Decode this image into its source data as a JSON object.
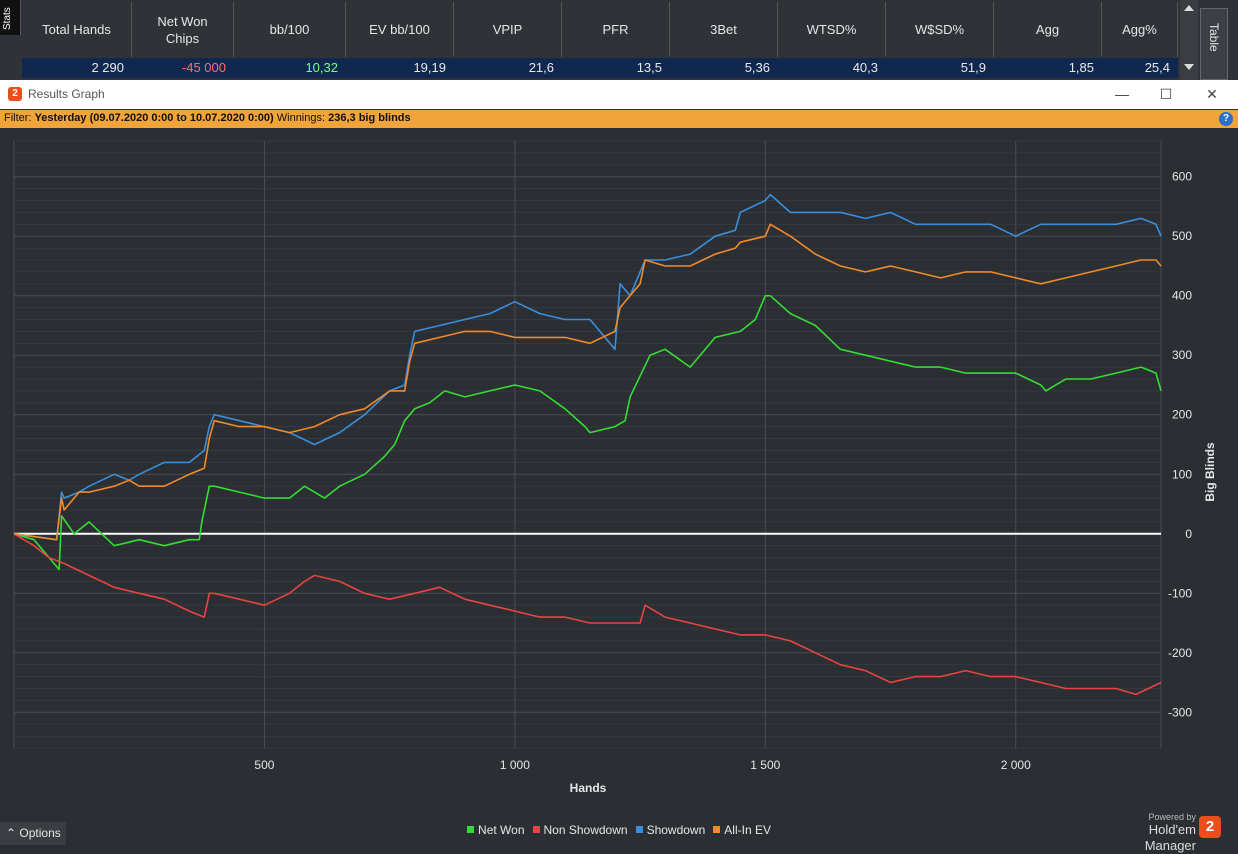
{
  "stats_panel": {
    "tab_label": "Stats",
    "right_tab_label": "Table",
    "columns": [
      {
        "header": "Total Hands",
        "value": "2 290",
        "value_color": "#e8e8e8"
      },
      {
        "header": "Net Won Chips",
        "value": "-45 000",
        "value_color": "#ff6f6f"
      },
      {
        "header": "bb/100",
        "value": "10,32",
        "value_color": "#7dff7d"
      },
      {
        "header": "EV bb/100",
        "value": "19,19",
        "value_color": "#e8e8e8"
      },
      {
        "header": "VPIP",
        "value": "21,6",
        "value_color": "#e8e8e8"
      },
      {
        "header": "PFR",
        "value": "13,5",
        "value_color": "#e8e8e8"
      },
      {
        "header": "3Bet",
        "value": "5,36",
        "value_color": "#e8e8e8"
      },
      {
        "header": "WTSD%",
        "value": "40,3",
        "value_color": "#e8e8e8"
      },
      {
        "header": "W$SD%",
        "value": "51,9",
        "value_color": "#e8e8e8"
      },
      {
        "header": "Agg",
        "value": "1,85",
        "value_color": "#e8e8e8"
      },
      {
        "header": "Agg%",
        "value": "25,4",
        "value_color": "#e8e8e8"
      }
    ]
  },
  "window": {
    "title": "Results Graph",
    "app_icon_text": "2",
    "minimize": "—",
    "maximize": "☐",
    "close": "✕"
  },
  "filter": {
    "label": "Filter:",
    "value": "Yesterday (09.07.2020 0:00 to 10.07.2020 0:00)",
    "winnings_label": "Winnings:",
    "winnings_value": "236,3 big blinds",
    "help": "?"
  },
  "chart_data": {
    "type": "line",
    "xlabel": "Hands",
    "ylabel": "Big Blinds",
    "xlim": [
      0,
      2290
    ],
    "ylim": [
      -360,
      660
    ],
    "x_ticks": [
      {
        "value": 500,
        "label": "500"
      },
      {
        "value": 1000,
        "label": "1 000"
      },
      {
        "value": 1500,
        "label": "1 500"
      },
      {
        "value": 2000,
        "label": "2 000"
      }
    ],
    "y_ticks": [
      {
        "value": 600,
        "label": "600"
      },
      {
        "value": 500,
        "label": "500"
      },
      {
        "value": 400,
        "label": "400"
      },
      {
        "value": 300,
        "label": "300"
      },
      {
        "value": 200,
        "label": "200"
      },
      {
        "value": 100,
        "label": "100"
      },
      {
        "value": 0,
        "label": "0"
      },
      {
        "value": -100,
        "label": "-100"
      },
      {
        "value": -200,
        "label": "-200"
      },
      {
        "value": -300,
        "label": "-300"
      }
    ],
    "grid": true,
    "legend_position": "bottom",
    "series": [
      {
        "name": "Net Won",
        "color": "#33dd33",
        "x": [
          0,
          40,
          70,
          90,
          95,
          120,
          150,
          200,
          250,
          300,
          350,
          370,
          375,
          390,
          400,
          450,
          500,
          550,
          580,
          620,
          650,
          700,
          740,
          760,
          780,
          800,
          830,
          860,
          900,
          950,
          1000,
          1050,
          1100,
          1140,
          1150,
          1200,
          1220,
          1230,
          1270,
          1300,
          1350,
          1400,
          1450,
          1480,
          1500,
          1510,
          1550,
          1600,
          1650,
          1700,
          1750,
          1800,
          1850,
          1900,
          1950,
          2000,
          2050,
          2060,
          2100,
          2150,
          2200,
          2250,
          2280,
          2290
        ],
        "y": [
          0,
          -10,
          -40,
          -60,
          30,
          0,
          20,
          -20,
          -10,
          -20,
          -10,
          -10,
          20,
          80,
          80,
          70,
          60,
          60,
          80,
          60,
          80,
          100,
          130,
          150,
          190,
          210,
          220,
          240,
          230,
          240,
          250,
          240,
          210,
          180,
          170,
          180,
          190,
          230,
          300,
          310,
          280,
          330,
          340,
          360,
          400,
          400,
          370,
          350,
          310,
          300,
          290,
          280,
          280,
          270,
          270,
          270,
          250,
          240,
          260,
          260,
          270,
          280,
          270,
          240
        ]
      },
      {
        "name": "Non Showdown",
        "color": "#e84444",
        "x": [
          0,
          40,
          70,
          100,
          150,
          200,
          250,
          300,
          350,
          380,
          390,
          400,
          450,
          500,
          550,
          580,
          600,
          650,
          700,
          750,
          800,
          850,
          900,
          950,
          1000,
          1050,
          1100,
          1150,
          1200,
          1250,
          1260,
          1300,
          1350,
          1400,
          1450,
          1500,
          1550,
          1600,
          1650,
          1700,
          1750,
          1800,
          1850,
          1900,
          1950,
          2000,
          2050,
          2100,
          2150,
          2200,
          2240,
          2290
        ],
        "y": [
          0,
          -20,
          -40,
          -50,
          -70,
          -90,
          -100,
          -110,
          -130,
          -140,
          -100,
          -100,
          -110,
          -120,
          -100,
          -80,
          -70,
          -80,
          -100,
          -110,
          -100,
          -90,
          -110,
          -120,
          -130,
          -140,
          -140,
          -150,
          -150,
          -150,
          -120,
          -140,
          -150,
          -160,
          -170,
          -170,
          -180,
          -200,
          -220,
          -230,
          -250,
          -240,
          -240,
          -230,
          -240,
          -240,
          -250,
          -260,
          -260,
          -260,
          -270,
          -250
        ]
      },
      {
        "name": "Showdown",
        "color": "#3a8fdd",
        "x": [
          0,
          85,
          95,
          100,
          130,
          150,
          200,
          230,
          250,
          300,
          350,
          380,
          390,
          400,
          450,
          500,
          550,
          600,
          650,
          700,
          750,
          780,
          790,
          800,
          850,
          900,
          950,
          1000,
          1050,
          1100,
          1150,
          1200,
          1210,
          1230,
          1250,
          1260,
          1300,
          1350,
          1400,
          1440,
          1450,
          1500,
          1510,
          1550,
          1600,
          1650,
          1700,
          1750,
          1800,
          1850,
          1900,
          1950,
          2000,
          2050,
          2100,
          2150,
          2200,
          2250,
          2280,
          2290
        ],
        "y": [
          0,
          -10,
          70,
          60,
          70,
          80,
          100,
          90,
          100,
          120,
          120,
          140,
          180,
          200,
          190,
          180,
          170,
          150,
          170,
          200,
          240,
          250,
          300,
          340,
          350,
          360,
          370,
          390,
          370,
          360,
          360,
          310,
          420,
          400,
          440,
          460,
          460,
          470,
          500,
          510,
          540,
          560,
          570,
          540,
          540,
          540,
          530,
          540,
          520,
          520,
          520,
          520,
          500,
          520,
          520,
          520,
          520,
          530,
          520,
          500
        ]
      },
      {
        "name": "All-In EV",
        "color": "#f08a2a",
        "x": [
          0,
          85,
          95,
          100,
          130,
          150,
          200,
          230,
          250,
          300,
          350,
          380,
          390,
          400,
          450,
          500,
          550,
          600,
          650,
          700,
          750,
          780,
          790,
          800,
          850,
          900,
          950,
          1000,
          1050,
          1100,
          1150,
          1200,
          1210,
          1230,
          1250,
          1260,
          1300,
          1350,
          1400,
          1440,
          1450,
          1500,
          1510,
          1550,
          1600,
          1650,
          1700,
          1750,
          1800,
          1850,
          1900,
          1950,
          2000,
          2050,
          2100,
          2150,
          2200,
          2250,
          2280,
          2290
        ],
        "y": [
          0,
          -10,
          60,
          40,
          70,
          70,
          80,
          90,
          80,
          80,
          100,
          110,
          160,
          190,
          180,
          180,
          170,
          180,
          200,
          210,
          240,
          240,
          290,
          320,
          330,
          340,
          340,
          330,
          330,
          330,
          320,
          340,
          380,
          400,
          420,
          460,
          450,
          450,
          470,
          480,
          490,
          500,
          520,
          500,
          470,
          450,
          440,
          450,
          440,
          430,
          440,
          440,
          430,
          420,
          430,
          440,
          450,
          460,
          460,
          450
        ]
      }
    ]
  },
  "bottom": {
    "options_label": "Options",
    "powered_by": "Powered by",
    "brand": "Hold'em Manager",
    "brand_logo_text": "2"
  }
}
